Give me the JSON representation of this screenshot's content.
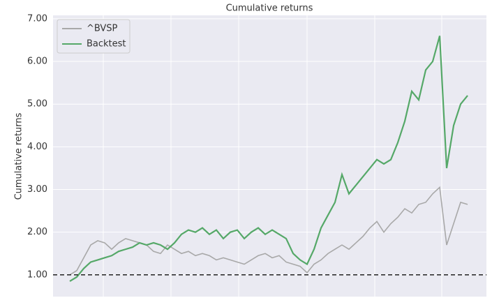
{
  "chart_data": {
    "type": "line",
    "title": "Cumulative returns",
    "y_label": "Cumulative returns",
    "series": [
      {
        "name": "^BVSP",
        "color": "#a8a8a8",
        "values": [
          1.0,
          1.1,
          1.4,
          1.7,
          1.8,
          1.75,
          1.6,
          1.75,
          1.85,
          1.8,
          1.75,
          1.7,
          1.55,
          1.5,
          1.7,
          1.6,
          1.5,
          1.55,
          1.45,
          1.5,
          1.45,
          1.35,
          1.4,
          1.35,
          1.3,
          1.25,
          1.35,
          1.45,
          1.5,
          1.4,
          1.45,
          1.3,
          1.25,
          1.2,
          1.05,
          1.25,
          1.35,
          1.5,
          1.6,
          1.7,
          1.6,
          1.75,
          1.9,
          2.1,
          2.25,
          2.0,
          2.2,
          2.35,
          2.55,
          2.45,
          2.65,
          2.7,
          2.9,
          3.05,
          1.7,
          2.2,
          2.7,
          2.65
        ]
      },
      {
        "name": "Backtest",
        "color": "#55a868",
        "values": [
          0.85,
          0.95,
          1.15,
          1.3,
          1.35,
          1.4,
          1.45,
          1.55,
          1.6,
          1.65,
          1.75,
          1.7,
          1.75,
          1.7,
          1.6,
          1.75,
          1.95,
          2.05,
          2.0,
          2.1,
          1.95,
          2.05,
          1.85,
          2.0,
          2.05,
          1.85,
          2.0,
          2.1,
          1.95,
          2.05,
          1.95,
          1.85,
          1.5,
          1.35,
          1.25,
          1.6,
          2.1,
          2.4,
          2.7,
          3.35,
          2.9,
          3.1,
          3.3,
          3.5,
          3.7,
          3.6,
          3.7,
          4.1,
          4.6,
          5.3,
          5.1,
          5.8,
          6.0,
          6.6,
          3.5,
          4.5,
          5.0,
          5.2
        ]
      }
    ],
    "ylim": [
      0.49,
      7.08
    ],
    "yticks": [
      {
        "value": 1,
        "label": "1.00"
      },
      {
        "value": 2,
        "label": "2.00"
      },
      {
        "value": 3,
        "label": "3.00"
      },
      {
        "value": 4,
        "label": "4.00"
      },
      {
        "value": 5,
        "label": "5.00"
      },
      {
        "value": 6,
        "label": "6.00"
      },
      {
        "value": 7,
        "label": "7.00"
      }
    ],
    "hline": 1,
    "grid": true,
    "legend": "upper left"
  }
}
